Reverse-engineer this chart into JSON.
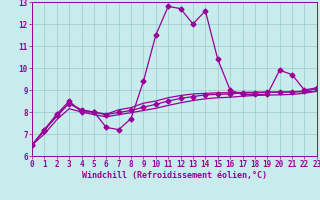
{
  "xlabel": "Windchill (Refroidissement éolien,°C)",
  "bg_color": "#c8ecec",
  "line_color": "#990099",
  "grid_color": "#99cccc",
  "xmin": 0,
  "xmax": 23,
  "ymin": 6,
  "ymax": 13,
  "x_ticks": [
    0,
    1,
    2,
    3,
    4,
    5,
    6,
    7,
    8,
    9,
    10,
    11,
    12,
    13,
    14,
    15,
    16,
    17,
    18,
    19,
    20,
    21,
    22,
    23
  ],
  "y_ticks": [
    6,
    7,
    8,
    9,
    10,
    11,
    12,
    13
  ],
  "series1_y": [
    6.5,
    7.2,
    7.9,
    8.5,
    8.0,
    8.0,
    7.3,
    7.2,
    7.7,
    9.4,
    11.5,
    12.8,
    12.7,
    12.0,
    12.6,
    10.4,
    9.0,
    8.8,
    8.8,
    8.8,
    9.9,
    9.7,
    9.0,
    9.1
  ],
  "series2_y": [
    6.5,
    7.2,
    7.8,
    8.4,
    8.1,
    8.0,
    7.9,
    8.1,
    8.2,
    8.4,
    8.5,
    8.65,
    8.75,
    8.82,
    8.85,
    8.87,
    8.88,
    8.89,
    8.9,
    8.9,
    8.91,
    8.91,
    8.92,
    8.93
  ],
  "series3_y": [
    6.5,
    7.0,
    7.65,
    8.15,
    8.0,
    7.88,
    7.78,
    7.88,
    7.97,
    8.07,
    8.17,
    8.3,
    8.42,
    8.52,
    8.6,
    8.65,
    8.67,
    8.72,
    8.75,
    8.77,
    8.78,
    8.8,
    8.85,
    8.95
  ],
  "series4_y": [
    6.5,
    7.15,
    7.85,
    8.38,
    8.08,
    7.98,
    7.88,
    7.98,
    8.07,
    8.22,
    8.35,
    8.5,
    8.62,
    8.7,
    8.78,
    8.8,
    8.82,
    8.87,
    8.88,
    8.9,
    8.9,
    8.92,
    8.95,
    9.05
  ],
  "marker_style": "D",
  "marker_size": 2.5,
  "line_width": 0.9,
  "tick_fontsize": 5.5,
  "xlabel_fontsize": 6.0
}
